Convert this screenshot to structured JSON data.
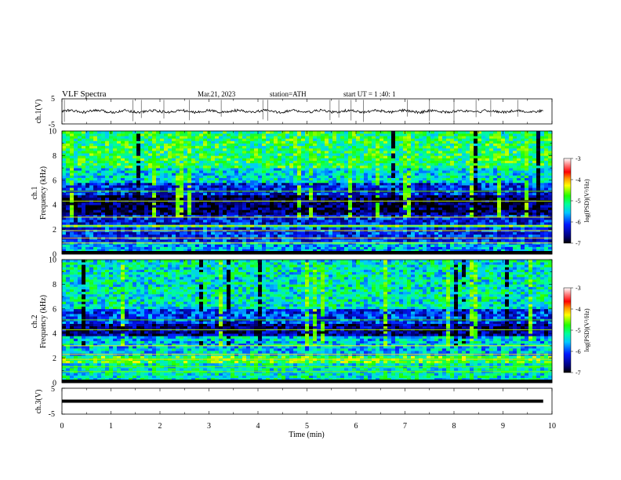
{
  "header": {
    "title": "VLF  Spectra",
    "date": "Mar.21, 2023",
    "station": "station=ATH",
    "start_ut": "start  UT  =   1 :40: 1"
  },
  "chart_data": [
    {
      "type": "line",
      "panel": "ch1-waveform",
      "ylabel": "ch.1(V)",
      "ylim": [
        -5,
        5
      ],
      "y_ticks": [
        "5",
        "-5"
      ],
      "xlim": [
        0,
        10
      ],
      "baseline": 0,
      "spikes_at_min": [
        0.05,
        1.45,
        1.62,
        2.08,
        2.6,
        3.25,
        4.1,
        4.2,
        5.47,
        5.65,
        5.9,
        6.15,
        7.05,
        7.5,
        8.0,
        8.45,
        8.75,
        9.3
      ]
    },
    {
      "type": "heatmap",
      "panel": "ch1-spectrogram",
      "ylabel_line1": "ch.1",
      "ylabel_line2": "Frequency  (kHz)",
      "ylim": [
        0,
        10
      ],
      "y_ticks": [
        "0",
        "2",
        "4",
        "6",
        "8",
        "10"
      ],
      "xlim": [
        0,
        10
      ],
      "colorbar": {
        "label": "log(PSD)(V²/Hz)",
        "range": [
          -7,
          -3
        ],
        "ticks": [
          "-3",
          "-4",
          "-5",
          "-6",
          "-7"
        ]
      },
      "bands": [
        {
          "from": 0.0,
          "to": 0.3,
          "level": -7
        },
        {
          "from": 0.3,
          "to": 1.0,
          "level": -5.6
        },
        {
          "from": 1.0,
          "to": 2.2,
          "level": -6.1
        },
        {
          "from": 2.2,
          "to": 2.5,
          "level": -5.0
        },
        {
          "from": 2.5,
          "to": 3.3,
          "level": -6.2
        },
        {
          "from": 3.3,
          "to": 4.9,
          "level": -6.8
        },
        {
          "from": 4.9,
          "to": 5.8,
          "level": -6.2
        },
        {
          "from": 5.8,
          "to": 7.0,
          "level": -5.4
        },
        {
          "from": 7.0,
          "to": 10.0,
          "level": -5.0
        }
      ]
    },
    {
      "type": "heatmap",
      "panel": "ch2-spectrogram",
      "ylabel_line1": "ch.2",
      "ylabel_line2": "Frequency  (kHz)",
      "ylim": [
        0,
        10
      ],
      "y_ticks": [
        "0",
        "2",
        "4",
        "6",
        "8",
        "10"
      ],
      "xlim": [
        0,
        10
      ],
      "colorbar": {
        "label": "log(PSD)(V²/Hz)",
        "range": [
          -7,
          -3
        ],
        "ticks": [
          "-3",
          "-4",
          "-5",
          "-6",
          "-7"
        ]
      },
      "bands": [
        {
          "from": 0.0,
          "to": 0.3,
          "level": -7
        },
        {
          "from": 0.3,
          "to": 1.6,
          "level": -5.3
        },
        {
          "from": 1.6,
          "to": 2.3,
          "level": -4.8
        },
        {
          "from": 2.3,
          "to": 3.9,
          "level": -5.5
        },
        {
          "from": 3.9,
          "to": 4.9,
          "level": -6.6
        },
        {
          "from": 4.9,
          "to": 6.0,
          "level": -6.1
        },
        {
          "from": 6.0,
          "to": 10.0,
          "level": -5.3
        }
      ]
    },
    {
      "type": "line",
      "panel": "ch3-waveform",
      "ylabel": "ch.3(V)",
      "ylim": [
        -5,
        5
      ],
      "y_ticks": [
        "5",
        "-5"
      ],
      "xlim": [
        0,
        10
      ],
      "x_ticks": [
        "0",
        "1",
        "2",
        "3",
        "4",
        "5",
        "6",
        "7",
        "8",
        "9",
        "10"
      ],
      "xlabel": "Time  (min)",
      "baseline": 0,
      "trace_end_min": 9.82
    }
  ]
}
